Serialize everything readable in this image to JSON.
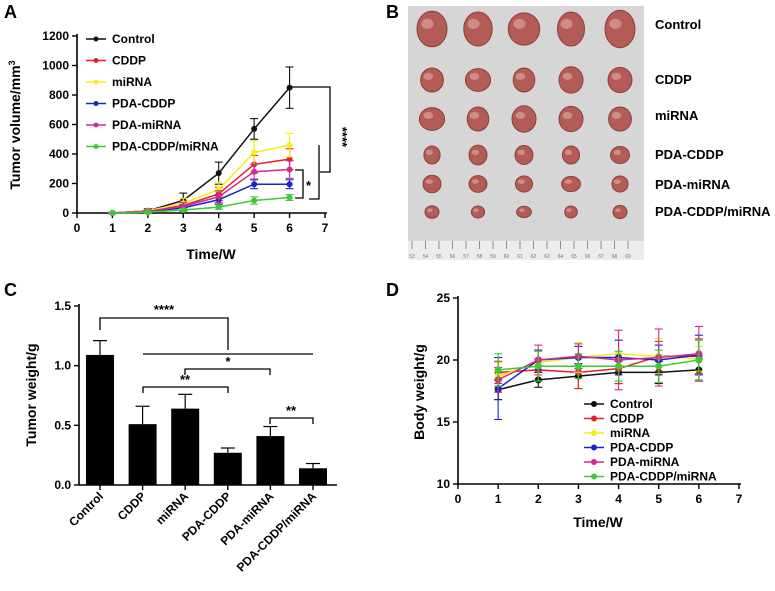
{
  "panels": {
    "A": "A",
    "B": "B",
    "C": "C",
    "D": "D"
  },
  "colors": {
    "Control": "#111111",
    "CDDP": "#e8202a",
    "miRNA": "#f2ee18",
    "PDA-CDDP": "#1a23c8",
    "PDA-miRNA": "#d12a8f",
    "PDA-CDDP/miRNA": "#3ec93a",
    "bar": "#000000",
    "photo_bg": "#d4d4d4",
    "tumor": "#b35b55"
  },
  "photo": {
    "rows": [
      "Control",
      "CDDP",
      "miRNA",
      "PDA-CDDP",
      "PDA-miRNA",
      "PDA-CDDP/miRNA"
    ],
    "ruler_ticks": [
      "53",
      "54",
      "55",
      "56",
      "57",
      "58",
      "59",
      "60",
      "61",
      "62",
      "63",
      "64",
      "65",
      "66",
      "67",
      "68",
      "69"
    ]
  },
  "chart_data": [
    {
      "panel": "A",
      "type": "line",
      "xlabel": "Time/W",
      "ylabel_main": "Tumor volume/mm",
      "ylabel_sup": "3",
      "xlim": [
        0,
        7
      ],
      "ylim": [
        0,
        1200
      ],
      "xticks": [
        "0",
        "1",
        "2",
        "3",
        "4",
        "5",
        "6",
        "7"
      ],
      "yticks": [
        "0",
        "200",
        "400",
        "600",
        "800",
        "1000",
        "1200"
      ],
      "x": [
        1,
        2,
        3,
        4,
        5,
        6
      ],
      "series": [
        {
          "name": "Control",
          "values": [
            0,
            15,
            85,
            270,
            570,
            850
          ],
          "errors": [
            5,
            15,
            50,
            75,
            70,
            140
          ]
        },
        {
          "name": "CDDP",
          "values": [
            0,
            15,
            50,
            130,
            330,
            365
          ],
          "errors": [
            5,
            10,
            30,
            45,
            60,
            70
          ]
        },
        {
          "name": "miRNA",
          "values": [
            0,
            15,
            65,
            160,
            410,
            460
          ],
          "errors": [
            5,
            10,
            35,
            50,
            80,
            80
          ]
        },
        {
          "name": "PDA-CDDP",
          "values": [
            0,
            10,
            35,
            90,
            195,
            195
          ],
          "errors": [
            5,
            8,
            20,
            30,
            30,
            30
          ]
        },
        {
          "name": "PDA-miRNA",
          "values": [
            0,
            12,
            45,
            110,
            280,
            295
          ],
          "errors": [
            5,
            8,
            25,
            40,
            50,
            60
          ]
        },
        {
          "name": "PDA-CDDP/miRNA",
          "values": [
            0,
            5,
            20,
            40,
            85,
            105
          ],
          "errors": [
            3,
            5,
            10,
            15,
            25,
            20
          ]
        }
      ],
      "significance": [
        "****",
        "*"
      ]
    },
    {
      "panel": "C",
      "type": "bar",
      "ylabel": "Tumor weight/g",
      "ylim": [
        0,
        1.5
      ],
      "yticks": [
        "0.0",
        "0.5",
        "1.0",
        "1.5"
      ],
      "categories": [
        "Control",
        "CDDP",
        "miRNA",
        "PDA-CDDP",
        "PDA-miRNA",
        "PDA-CDDP/miRNA"
      ],
      "values": [
        1.09,
        0.51,
        0.64,
        0.27,
        0.41,
        0.14
      ],
      "errors": [
        0.12,
        0.15,
        0.12,
        0.04,
        0.08,
        0.04
      ],
      "significance": [
        "****",
        "*",
        "**",
        "**"
      ]
    },
    {
      "panel": "D",
      "type": "line",
      "xlabel": "Time/W",
      "ylabel": "Body weight/g",
      "xlim": [
        0,
        7
      ],
      "ylim": [
        10,
        25
      ],
      "xticks": [
        "0",
        "1",
        "2",
        "3",
        "4",
        "5",
        "6",
        "7"
      ],
      "yticks": [
        "10",
        "15",
        "20",
        "25"
      ],
      "x": [
        1,
        2,
        3,
        4,
        5,
        6
      ],
      "series": [
        {
          "name": "Control",
          "values": [
            17.6,
            18.4,
            18.7,
            19.0,
            19.0,
            19.2
          ],
          "errors": [
            0.8,
            0.6,
            1.0,
            0.9,
            0.9,
            0.9
          ]
        },
        {
          "name": "CDDP",
          "values": [
            19.0,
            19.2,
            19.0,
            19.3,
            20.3,
            20.3
          ],
          "errors": [
            0.9,
            0.9,
            1.3,
            1.2,
            1.2,
            1.4
          ]
        },
        {
          "name": "miRNA",
          "values": [
            18.7,
            19.8,
            20.2,
            20.5,
            20.3,
            20.1
          ],
          "errors": [
            1.1,
            1.0,
            1.2,
            1.1,
            1.4,
            1.0
          ]
        },
        {
          "name": "PDA-CDDP",
          "values": [
            17.7,
            20.0,
            20.2,
            20.2,
            20.0,
            20.4
          ],
          "errors": [
            2.5,
            0.8,
            0.9,
            1.4,
            1.2,
            1.6
          ]
        },
        {
          "name": "PDA-miRNA",
          "values": [
            18.4,
            20.0,
            20.3,
            20.0,
            20.2,
            20.5
          ],
          "errors": [
            1.0,
            1.2,
            1.0,
            2.4,
            2.3,
            2.2
          ]
        },
        {
          "name": "PDA-CDDP/miRNA",
          "values": [
            19.2,
            19.5,
            19.5,
            19.5,
            19.5,
            20.0
          ],
          "errors": [
            1.3,
            1.2,
            1.0,
            1.2,
            1.3,
            1.6
          ]
        }
      ]
    }
  ]
}
